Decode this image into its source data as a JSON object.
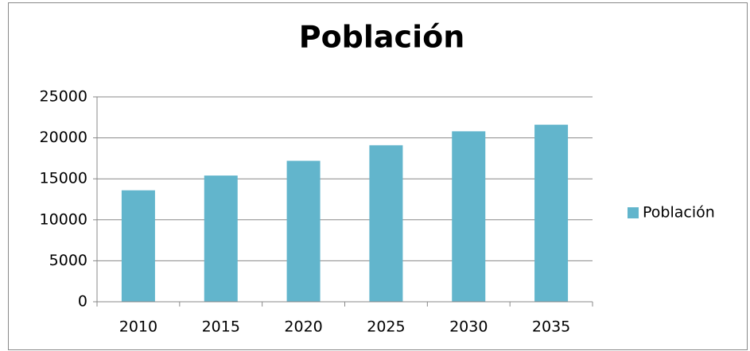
{
  "chart_data": {
    "type": "bar",
    "title": "Población",
    "categories": [
      "2010",
      "2015",
      "2020",
      "2025",
      "2030",
      "2035"
    ],
    "series": [
      {
        "name": "Población",
        "color": "#62b5cc",
        "values": [
          13600,
          15400,
          17200,
          19100,
          20800,
          21600
        ]
      }
    ],
    "ylim": [
      0,
      25000
    ],
    "yticks": [
      0,
      5000,
      10000,
      15000,
      20000,
      25000
    ],
    "grid": true,
    "legend": "right"
  }
}
